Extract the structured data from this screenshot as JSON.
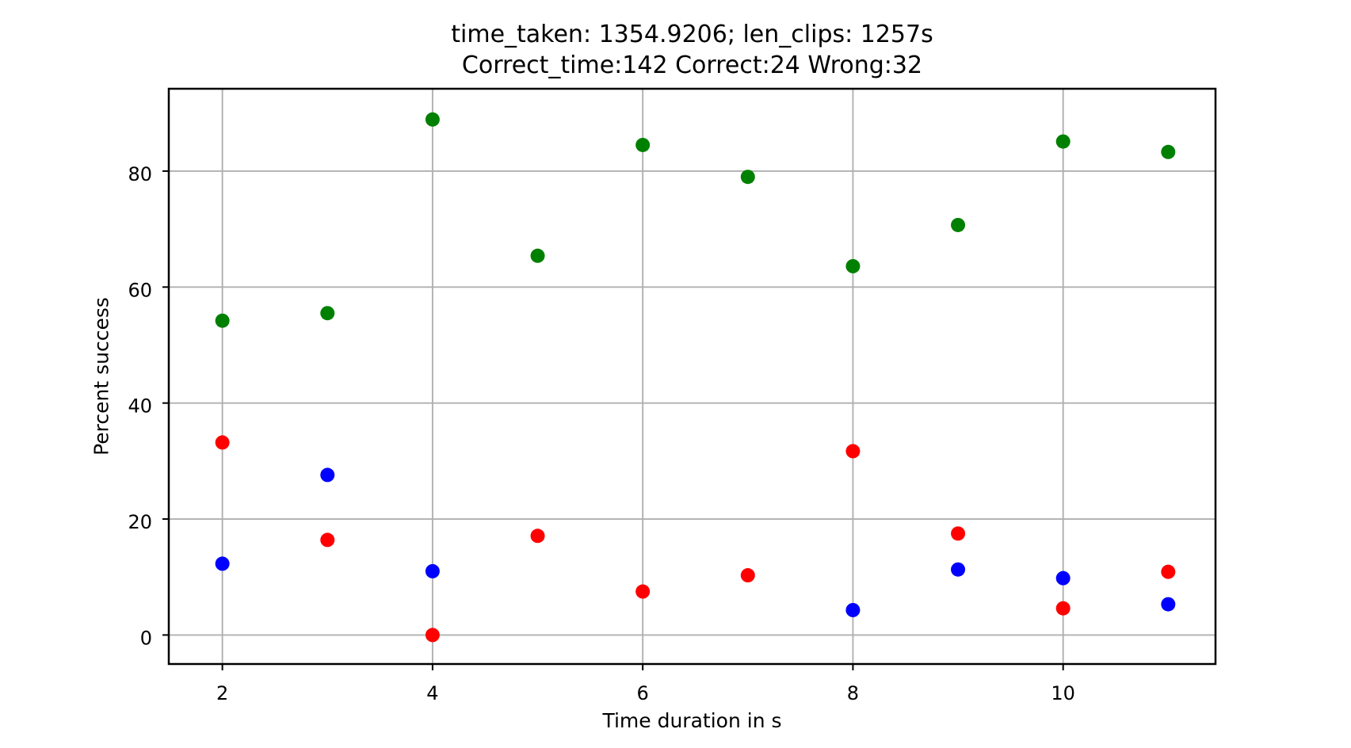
{
  "figure": {
    "title_line1": "time_taken: 1354.9206; len_clips: 1257s",
    "title_line2": "Correct_time:142 Correct:24 Wrong:32",
    "xlabel": "Time duration in s",
    "ylabel": "Percent success"
  },
  "colors": {
    "green_series": "#008000",
    "red_series": "#ff0000",
    "blue_series": "#0000ff",
    "grid": "#b0b0b0",
    "spine": "#000000",
    "background": "#ffffff"
  },
  "chart_data": {
    "type": "scatter",
    "title": "time_taken: 1354.9206; len_clips: 1257s\nCorrect_time:142 Correct:24 Wrong:32",
    "xlabel": "Time duration in s",
    "ylabel": "Percent success",
    "xticks": [
      2,
      4,
      6,
      8,
      10
    ],
    "yticks": [
      0,
      20,
      40,
      60,
      80
    ],
    "xlim": [
      1.49,
      11.45
    ],
    "ylim": [
      -5.0,
      94.2
    ],
    "grid": true,
    "legend": false,
    "marker_radius_px": 9,
    "series": [
      {
        "name": "green",
        "color": "#008000",
        "x": [
          2,
          3,
          4,
          5,
          6,
          7,
          8,
          9,
          10,
          11
        ],
        "y": [
          54.2,
          55.5,
          88.9,
          65.4,
          84.5,
          79.0,
          63.6,
          70.7,
          85.1,
          83.3
        ]
      },
      {
        "name": "blue",
        "color": "#0000ff",
        "x": [
          2,
          3,
          4,
          8,
          9,
          10,
          11
        ],
        "y": [
          12.3,
          27.6,
          11.0,
          4.3,
          11.3,
          9.8,
          5.3
        ]
      },
      {
        "name": "red",
        "color": "#ff0000",
        "x": [
          2,
          3,
          4,
          5,
          6,
          7,
          8,
          9,
          10,
          11
        ],
        "y": [
          33.2,
          16.4,
          0.0,
          17.1,
          7.5,
          10.3,
          31.7,
          17.5,
          4.6,
          10.9
        ]
      }
    ]
  }
}
